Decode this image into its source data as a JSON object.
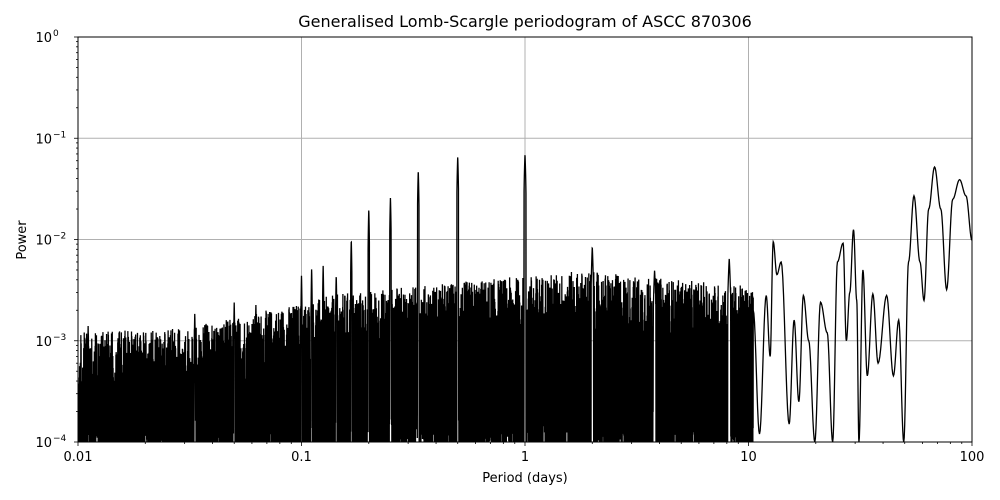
{
  "chart_data": {
    "type": "line",
    "title": "Generalised Lomb-Scargle periodogram of ASCC 870306",
    "xlabel": "Period (days)",
    "ylabel": "Power",
    "xscale": "log",
    "yscale": "log",
    "xlim": [
      0.01,
      100
    ],
    "ylim": [
      0.0001,
      1
    ],
    "grid": true,
    "legend": null,
    "line_color": "#000000",
    "grid_color": "#b0b0b0",
    "x_ticks": [
      {
        "value": 0.01,
        "label": "0.01"
      },
      {
        "value": 0.1,
        "label": "0.1"
      },
      {
        "value": 1,
        "label": "1"
      },
      {
        "value": 10,
        "label": "10"
      },
      {
        "value": 100,
        "label": "100"
      }
    ],
    "y_ticks": [
      {
        "value": 0.0001,
        "base": "10",
        "exp": "−4"
      },
      {
        "value": 0.001,
        "base": "10",
        "exp": "−3"
      },
      {
        "value": 0.01,
        "base": "10",
        "exp": "−2"
      },
      {
        "value": 0.1,
        "base": "10",
        "exp": "−1"
      },
      {
        "value": 1,
        "base": "10",
        "exp": "0"
      }
    ],
    "notable_peaks": [
      {
        "period": 0.0111,
        "power": 0.0014
      },
      {
        "period": 0.0333,
        "power": 0.0019
      },
      {
        "period": 0.05,
        "power": 0.0024
      },
      {
        "period": 0.0625,
        "power": 0.0023
      },
      {
        "period": 0.1,
        "power": 0.0045
      },
      {
        "period": 0.111,
        "power": 0.0052
      },
      {
        "period": 0.125,
        "power": 0.0055
      },
      {
        "period": 0.143,
        "power": 0.0045
      },
      {
        "period": 0.167,
        "power": 0.01
      },
      {
        "period": 0.2,
        "power": 0.02
      },
      {
        "period": 0.25,
        "power": 0.026
      },
      {
        "period": 0.333,
        "power": 0.048
      },
      {
        "period": 0.5,
        "power": 0.066
      },
      {
        "period": 1.0,
        "power": 0.07
      },
      {
        "period": 2.0,
        "power": 0.0085
      },
      {
        "period": 3.8,
        "power": 0.005
      },
      {
        "period": 8.2,
        "power": 0.0065
      },
      {
        "period": 12.9,
        "power": 0.0095
      },
      {
        "period": 14.0,
        "power": 0.006
      },
      {
        "period": 26.5,
        "power": 0.0092
      },
      {
        "period": 29.5,
        "power": 0.0125
      },
      {
        "period": 32.5,
        "power": 0.005
      },
      {
        "period": 36.0,
        "power": 0.0029
      },
      {
        "period": 41.5,
        "power": 0.0028
      },
      {
        "period": 47.0,
        "power": 0.0016
      },
      {
        "period": 55.0,
        "power": 0.027
      },
      {
        "period": 68.0,
        "power": 0.052
      },
      {
        "period": 88.0,
        "power": 0.039
      },
      {
        "period": 100.0,
        "power": 0.0098
      }
    ],
    "smooth_tail": [
      [
        10.5,
        0.002
      ],
      [
        11.2,
        0.00012
      ],
      [
        12.0,
        0.0028
      ],
      [
        12.5,
        0.0007
      ],
      [
        12.9,
        0.0095
      ],
      [
        13.4,
        0.0045
      ],
      [
        14.0,
        0.006
      ],
      [
        15.2,
        0.00015
      ],
      [
        16.0,
        0.0016
      ],
      [
        16.8,
        0.00025
      ],
      [
        17.6,
        0.0028
      ],
      [
        18.6,
        0.001
      ],
      [
        19.8,
        0.0001
      ],
      [
        21.0,
        0.0024
      ],
      [
        22.5,
        0.0012
      ],
      [
        23.8,
        0.0001
      ],
      [
        25.0,
        0.006
      ],
      [
        26.5,
        0.0092
      ],
      [
        27.4,
        0.001
      ],
      [
        28.4,
        0.003
      ],
      [
        29.5,
        0.0125
      ],
      [
        30.5,
        0.0025
      ],
      [
        31.2,
        0.0001
      ],
      [
        32.5,
        0.005
      ],
      [
        34.0,
        0.00045
      ],
      [
        36.0,
        0.0029
      ],
      [
        38.0,
        0.0006
      ],
      [
        41.5,
        0.0028
      ],
      [
        44.5,
        0.00045
      ],
      [
        47.0,
        0.0016
      ],
      [
        49.5,
        0.0001
      ],
      [
        52.0,
        0.006
      ],
      [
        55.0,
        0.027
      ],
      [
        58.5,
        0.006
      ],
      [
        61.0,
        0.0025
      ],
      [
        64.0,
        0.02
      ],
      [
        68.0,
        0.052
      ],
      [
        72.5,
        0.02
      ],
      [
        77.0,
        0.0032
      ],
      [
        82.0,
        0.025
      ],
      [
        88.0,
        0.039
      ],
      [
        94.0,
        0.027
      ],
      [
        100.0,
        0.0098
      ]
    ]
  }
}
